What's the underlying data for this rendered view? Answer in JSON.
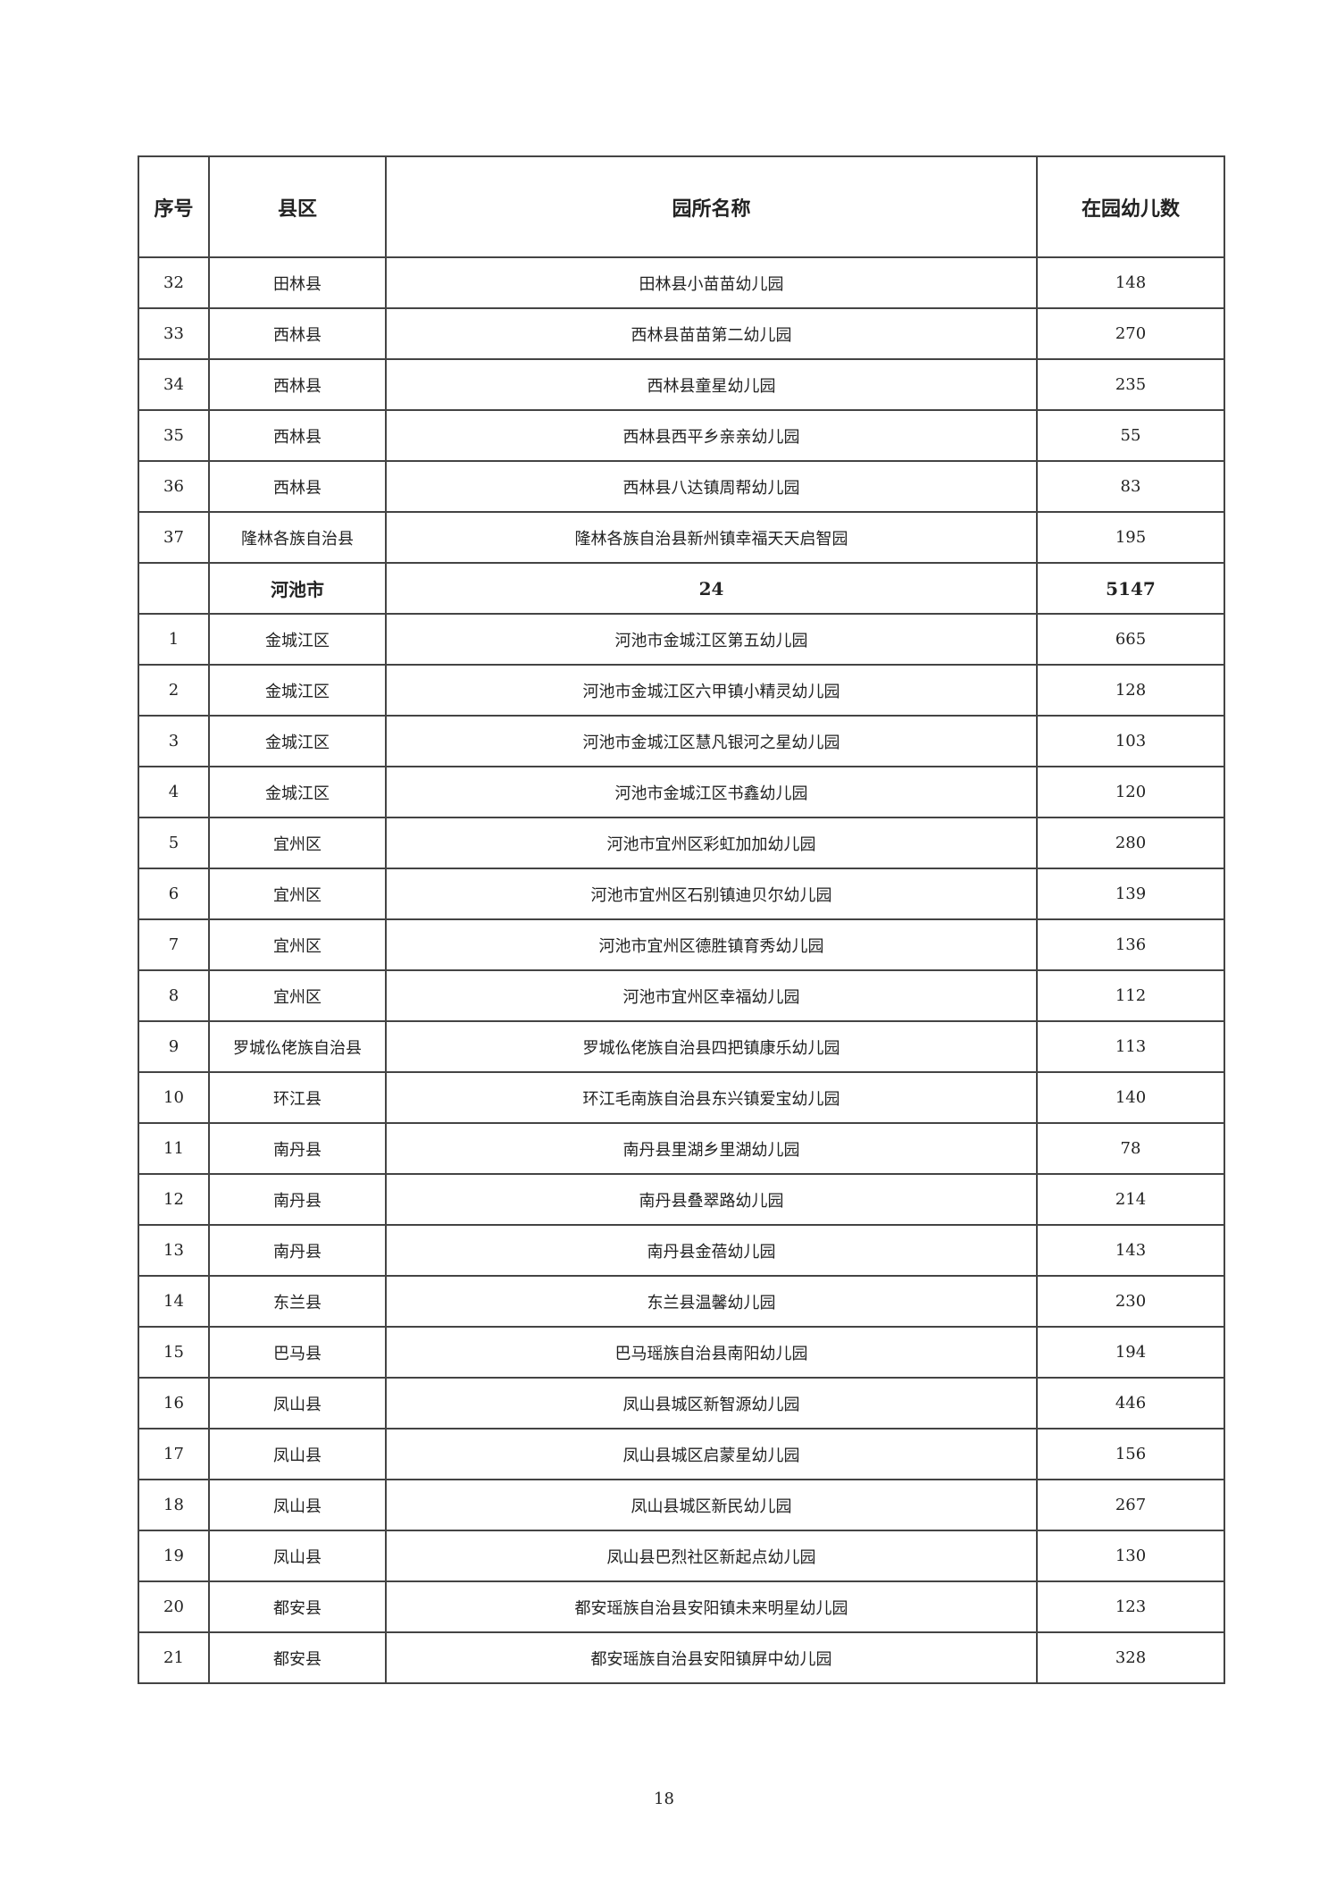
{
  "table": {
    "headers": [
      "序号",
      "县区",
      "园所名称",
      "在园幼儿数"
    ],
    "rows": [
      {
        "no": "32",
        "county": "田林县",
        "name": "田林县小苗苗幼儿园",
        "count": "148"
      },
      {
        "no": "33",
        "county": "西林县",
        "name": "西林县苗苗第二幼儿园",
        "count": "270"
      },
      {
        "no": "34",
        "county": "西林县",
        "name": "西林县童星幼儿园",
        "count": "235"
      },
      {
        "no": "35",
        "county": "西林县",
        "name": "西林县西平乡亲亲幼儿园",
        "count": "55"
      },
      {
        "no": "36",
        "county": "西林县",
        "name": "西林县八达镇周帮幼儿园",
        "count": "83"
      },
      {
        "no": "37",
        "county": "隆林各族自治县",
        "name": "隆林各族自治县新州镇幸福天天启智园",
        "count": "195"
      },
      {
        "no": "",
        "county": "河池市",
        "name": "24",
        "count": "5147",
        "subtotal": true
      },
      {
        "no": "1",
        "county": "金城江区",
        "name": "河池市金城江区第五幼儿园",
        "count": "665"
      },
      {
        "no": "2",
        "county": "金城江区",
        "name": "河池市金城江区六甲镇小精灵幼儿园",
        "count": "128"
      },
      {
        "no": "3",
        "county": "金城江区",
        "name": "河池市金城江区慧凡银河之星幼儿园",
        "count": "103"
      },
      {
        "no": "4",
        "county": "金城江区",
        "name": "河池市金城江区书鑫幼儿园",
        "count": "120"
      },
      {
        "no": "5",
        "county": "宜州区",
        "name": "河池市宜州区彩虹加加幼儿园",
        "count": "280"
      },
      {
        "no": "6",
        "county": "宜州区",
        "name": "河池市宜州区石别镇迪贝尔幼儿园",
        "count": "139"
      },
      {
        "no": "7",
        "county": "宜州区",
        "name": "河池市宜州区德胜镇育秀幼儿园",
        "count": "136"
      },
      {
        "no": "8",
        "county": "宜州区",
        "name": "河池市宜州区幸福幼儿园",
        "count": "112"
      },
      {
        "no": "9",
        "county": "罗城仫佬族自治县",
        "name": "罗城仫佬族自治县四把镇康乐幼儿园",
        "count": "113"
      },
      {
        "no": "10",
        "county": "环江县",
        "name": "环江毛南族自治县东兴镇爱宝幼儿园",
        "count": "140"
      },
      {
        "no": "11",
        "county": "南丹县",
        "name": "南丹县里湖乡里湖幼儿园",
        "count": "78"
      },
      {
        "no": "12",
        "county": "南丹县",
        "name": "南丹县叠翠路幼儿园",
        "count": "214"
      },
      {
        "no": "13",
        "county": "南丹县",
        "name": "南丹县金蓓幼儿园",
        "count": "143"
      },
      {
        "no": "14",
        "county": "东兰县",
        "name": "东兰县温馨幼儿园",
        "count": "230"
      },
      {
        "no": "15",
        "county": "巴马县",
        "name": "巴马瑶族自治县南阳幼儿园",
        "count": "194"
      },
      {
        "no": "16",
        "county": "凤山县",
        "name": "凤山县城区新智源幼儿园",
        "count": "446"
      },
      {
        "no": "17",
        "county": "凤山县",
        "name": "凤山县城区启蒙星幼儿园",
        "count": "156"
      },
      {
        "no": "18",
        "county": "凤山县",
        "name": "凤山县城区新民幼儿园",
        "count": "267"
      },
      {
        "no": "19",
        "county": "凤山县",
        "name": "凤山县巴烈社区新起点幼儿园",
        "count": "130"
      },
      {
        "no": "20",
        "county": "都安县",
        "name": "都安瑶族自治县安阳镇未来明星幼儿园",
        "count": "123"
      },
      {
        "no": "21",
        "county": "都安县",
        "name": "都安瑶族自治县安阳镇屏中幼儿园",
        "count": "328"
      }
    ]
  },
  "page_number": "18"
}
